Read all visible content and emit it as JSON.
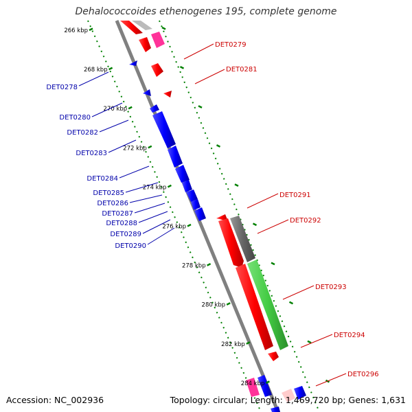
{
  "title": "Dehalococcoides ethenogenes 195, complete genome",
  "footer": {
    "accession": "Accession: NC_002936",
    "summary": "Topology: circular; Length: 1,469,720 bp; Genes: 1,631"
  },
  "kbp_ticks": [
    {
      "pos": 266,
      "label": "266 kbp"
    },
    {
      "pos": 268,
      "label": "268 kbp"
    },
    {
      "pos": 270,
      "label": "270 kbp"
    },
    {
      "pos": 272,
      "label": "272 kbp"
    },
    {
      "pos": 274,
      "label": "274 kbp"
    },
    {
      "pos": 276,
      "label": "276 kbp"
    },
    {
      "pos": 278,
      "label": "278 kbp"
    },
    {
      "pos": 280,
      "label": "280 kbp"
    },
    {
      "pos": 282,
      "label": "282 kbp"
    },
    {
      "pos": 284,
      "label": "284 kbp"
    }
  ],
  "genes_forward": [
    {
      "id": "DET0279",
      "side": "right"
    },
    {
      "id": "DET0281",
      "side": "right"
    },
    {
      "id": "DET0291",
      "side": "right"
    },
    {
      "id": "DET0292",
      "side": "right"
    },
    {
      "id": "DET0293",
      "side": "right"
    },
    {
      "id": "DET0294",
      "side": "right"
    },
    {
      "id": "DET0296",
      "side": "right"
    }
  ],
  "genes_reverse": [
    {
      "id": "DET0278"
    },
    {
      "id": "DET0280"
    },
    {
      "id": "DET0282"
    },
    {
      "id": "DET0283"
    },
    {
      "id": "DET0284"
    },
    {
      "id": "DET0285"
    },
    {
      "id": "DET0286"
    },
    {
      "id": "DET0287"
    },
    {
      "id": "DET0288"
    },
    {
      "id": "DET0289"
    },
    {
      "id": "DET0290"
    }
  ],
  "colors": {
    "forward": "#ff0000",
    "reverse": "#0000ff",
    "backbone": "#808080",
    "tick": "#008000",
    "rRNA": "#ff3399",
    "misc_gray": "#666666",
    "green_feature": "#44cc44",
    "label_forward": "#cc0000",
    "label_reverse": "#0000aa"
  }
}
